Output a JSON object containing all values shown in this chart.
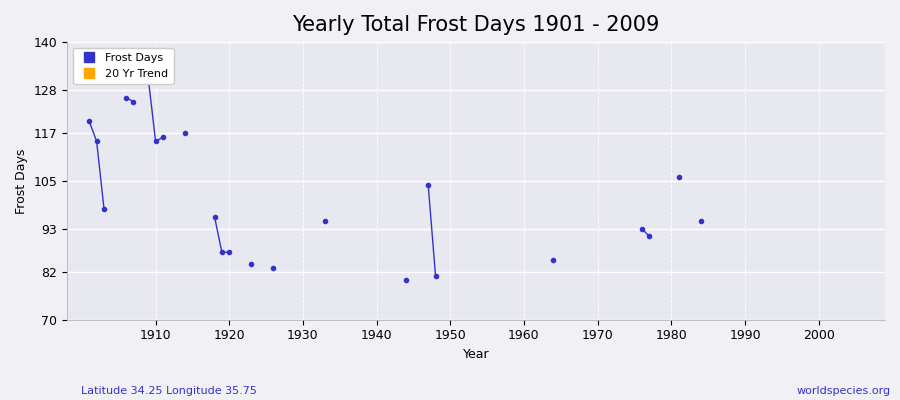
{
  "title": "Yearly Total Frost Days 1901 - 2009",
  "xlabel": "Year",
  "ylabel": "Frost Days",
  "xlim": [
    1898,
    2009
  ],
  "ylim": [
    70,
    140
  ],
  "yticks": [
    70,
    82,
    93,
    105,
    117,
    128,
    140
  ],
  "xticks": [
    1910,
    1920,
    1930,
    1940,
    1950,
    1960,
    1970,
    1980,
    1990,
    2000
  ],
  "bg_color": "#f0f0f5",
  "plot_bg_color": "#e8e8f0",
  "line_color": "#3333cc",
  "legend_items": [
    {
      "label": "Frost Days",
      "color": "#3333cc",
      "marker": "s"
    },
    {
      "label": "20 Yr Trend",
      "color": "#ffa500",
      "marker": "s"
    }
  ],
  "segments": [
    [
      [
        1901,
        120
      ],
      [
        1902,
        115
      ],
      [
        1903,
        98
      ]
    ],
    [
      [
        1906,
        126
      ],
      [
        1907,
        125
      ]
    ],
    [
      [
        1909,
        131
      ],
      [
        1910,
        115
      ],
      [
        1911,
        116
      ]
    ],
    [
      [
        1914,
        117
      ]
    ],
    [
      [
        1918,
        96
      ],
      [
        1919,
        87
      ],
      [
        1920,
        87
      ]
    ],
    [
      [
        1923,
        84
      ]
    ],
    [
      [
        1926,
        83
      ]
    ],
    [
      [
        1933,
        95
      ]
    ],
    [
      [
        1944,
        80
      ]
    ],
    [
      [
        1947,
        104
      ],
      [
        1948,
        81
      ]
    ],
    [
      [
        1964,
        85
      ]
    ],
    [
      [
        1976,
        93
      ],
      [
        1977,
        91
      ]
    ],
    [
      [
        1981,
        106
      ]
    ],
    [
      [
        1984,
        95
      ]
    ]
  ],
  "isolated_points": [
    [
      1901,
      120
    ],
    [
      1902,
      115
    ],
    [
      1903,
      98
    ],
    [
      1906,
      126
    ],
    [
      1907,
      125
    ],
    [
      1909,
      131
    ],
    [
      1910,
      115
    ],
    [
      1911,
      116
    ],
    [
      1914,
      117
    ],
    [
      1918,
      96
    ],
    [
      1919,
      87
    ],
    [
      1920,
      87
    ],
    [
      1923,
      84
    ],
    [
      1926,
      83
    ],
    [
      1933,
      95
    ],
    [
      1944,
      80
    ],
    [
      1947,
      104
    ],
    [
      1948,
      81
    ],
    [
      1964,
      85
    ],
    [
      1976,
      93
    ],
    [
      1977,
      91
    ],
    [
      1981,
      106
    ],
    [
      1984,
      95
    ]
  ],
  "footnote_left": "Latitude 34.25 Longitude 35.75",
  "footnote_right": "worldspecies.org",
  "title_fontsize": 15,
  "axis_label_fontsize": 9,
  "tick_fontsize": 9,
  "footnote_fontsize": 8
}
